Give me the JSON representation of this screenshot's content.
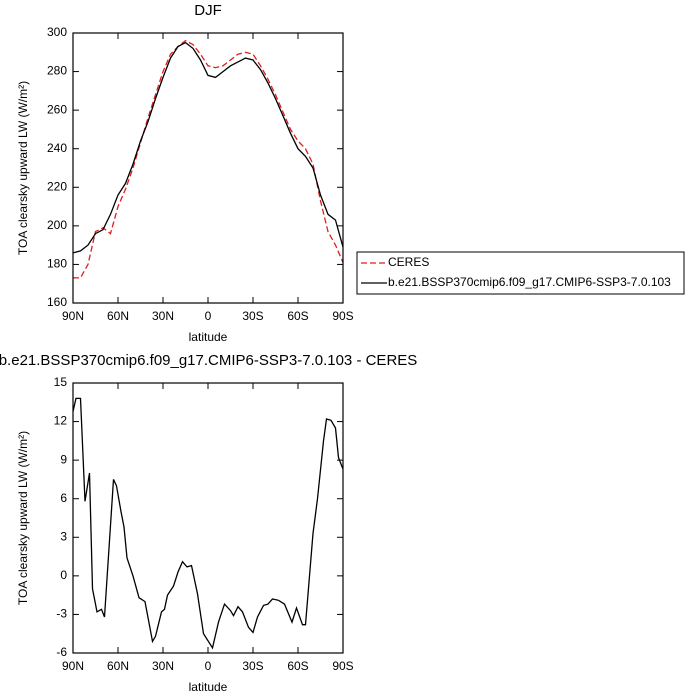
{
  "chart_data": [
    {
      "type": "line",
      "title": "DJF",
      "xlabel": "latitude",
      "ylabel": "TOA clearsky upward LW (W/m²)",
      "x": [
        90,
        85,
        80,
        75,
        70,
        65,
        60,
        55,
        50,
        45,
        40,
        35,
        30,
        25,
        20,
        15,
        10,
        5,
        0,
        -5,
        -10,
        -15,
        -20,
        -25,
        -30,
        -35,
        -40,
        -45,
        -50,
        -55,
        -60,
        -65,
        -70,
        -75,
        -80,
        -85,
        -90
      ],
      "series": [
        {
          "name": "CERES",
          "color": "#e41a1c",
          "dashed": true,
          "values": [
            173,
            173,
            180,
            197,
            199,
            196,
            210,
            219,
            230,
            243,
            256,
            268,
            280,
            289,
            293,
            296,
            294,
            289,
            283,
            282,
            283,
            286,
            289,
            290,
            289,
            283,
            276,
            268,
            259,
            250,
            244,
            240,
            232,
            213,
            197,
            190,
            181
          ]
        },
        {
          "name": "b.e21.BSSP370cmip6.f09_g17.CMIP6-SSP3-7.0.103",
          "color": "#000000",
          "dashed": false,
          "values": [
            186,
            187,
            190,
            196,
            198,
            206,
            216,
            222,
            232,
            244,
            254,
            266,
            277,
            287,
            293,
            295,
            292,
            286,
            278,
            277,
            280,
            283,
            285,
            287,
            286,
            281,
            274,
            266,
            257,
            248,
            240,
            236,
            230,
            216,
            206,
            203,
            189
          ]
        }
      ],
      "xlim": [
        90,
        -90
      ],
      "xticks": [
        {
          "value": 90,
          "label": "90N"
        },
        {
          "value": 60,
          "label": "60N"
        },
        {
          "value": 30,
          "label": "30N"
        },
        0,
        {
          "value": -30,
          "label": "30S"
        },
        {
          "value": -60,
          "label": "60S"
        },
        {
          "value": -90,
          "label": "90S"
        }
      ],
      "ylim": [
        160,
        300
      ],
      "yticks": [
        160,
        180,
        200,
        220,
        240,
        260,
        280,
        300
      ],
      "legend": "right"
    },
    {
      "type": "line",
      "title": "b.e21.BSSP370cmip6.f09_g17.CMIP6-SSP3-7.0.103 - CERES",
      "xlabel": "latitude",
      "ylabel": "TOA clearsky upward LW (W/m²)",
      "x": [
        90,
        88,
        85,
        82,
        79,
        77,
        74,
        71,
        69,
        63,
        61,
        58,
        56,
        54,
        50,
        46,
        42,
        37,
        35,
        31,
        29,
        27,
        23,
        20,
        17,
        14,
        11,
        7,
        3,
        -3,
        -7,
        -11,
        -15,
        -17,
        -20,
        -23,
        -27,
        -30,
        -33,
        -37,
        -40,
        -43,
        -47,
        -51,
        -56,
        -59,
        -63,
        -65,
        -70,
        -73,
        -77,
        -79,
        -82,
        -85,
        -87,
        -90
      ],
      "series": [
        {
          "color": "#000000",
          "dashed": false,
          "values": [
            12.8,
            13.8,
            13.8,
            5.8,
            8.0,
            -1,
            -2.8,
            -2.6,
            -3.2,
            7.5,
            7,
            5,
            3.8,
            1.4,
            0,
            -1.7,
            -2.0,
            -5.1,
            -4.7,
            -2.8,
            -2.6,
            -1.5,
            -0.8,
            0.3,
            1.1,
            0.7,
            0.8,
            -1.4,
            -4.5,
            -5.6,
            -3.6,
            -2.2,
            -2.7,
            -3.1,
            -2.4,
            -2.8,
            -4.0,
            -4.4,
            -3.2,
            -2.3,
            -2.2,
            -1.8,
            -1.9,
            -2.2,
            -3.6,
            -2.5,
            -3.8,
            -3.8,
            3.3,
            6,
            10.5,
            12.2,
            12.1,
            11.5,
            9.2,
            8.3
          ]
        }
      ],
      "xlim": [
        90,
        -90
      ],
      "xticks": [
        {
          "value": 90,
          "label": "90N"
        },
        {
          "value": 60,
          "label": "60N"
        },
        {
          "value": 30,
          "label": "30N"
        },
        0,
        {
          "value": -30,
          "label": "30S"
        },
        {
          "value": -60,
          "label": "60S"
        },
        {
          "value": -90,
          "label": "90S"
        }
      ],
      "ylim": [
        -6,
        15
      ],
      "yticks": [
        -6,
        -3,
        0,
        3,
        6,
        9,
        12,
        15
      ]
    }
  ]
}
